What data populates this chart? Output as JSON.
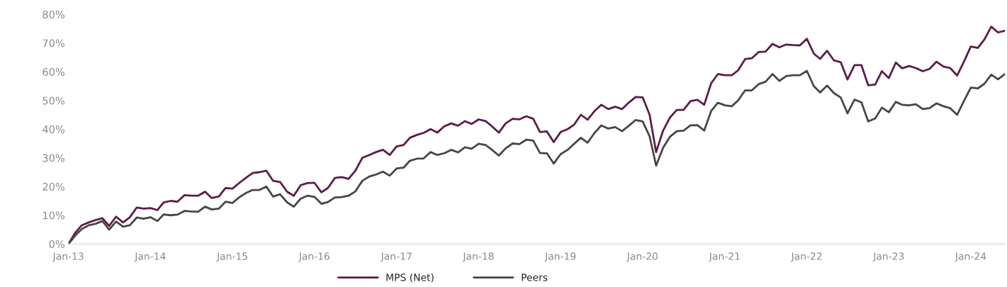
{
  "chart_data": {
    "type": "line",
    "x": [
      "2013-01",
      "2013-02",
      "2013-03",
      "2013-04",
      "2013-05",
      "2013-06",
      "2013-07",
      "2013-08",
      "2013-09",
      "2013-10",
      "2013-11",
      "2013-12",
      "2014-01",
      "2014-02",
      "2014-03",
      "2014-04",
      "2014-05",
      "2014-06",
      "2014-07",
      "2014-08",
      "2014-09",
      "2014-10",
      "2014-11",
      "2014-12",
      "2015-01",
      "2015-02",
      "2015-03",
      "2015-04",
      "2015-05",
      "2015-06",
      "2015-07",
      "2015-08",
      "2015-09",
      "2015-10",
      "2015-11",
      "2015-12",
      "2016-01",
      "2016-02",
      "2016-03",
      "2016-04",
      "2016-05",
      "2016-06",
      "2016-07",
      "2016-08",
      "2016-09",
      "2016-10",
      "2016-11",
      "2016-12",
      "2017-01",
      "2017-02",
      "2017-03",
      "2017-04",
      "2017-05",
      "2017-06",
      "2017-07",
      "2017-08",
      "2017-09",
      "2017-10",
      "2017-11",
      "2017-12",
      "2018-01",
      "2018-02",
      "2018-03",
      "2018-04",
      "2018-05",
      "2018-06",
      "2018-07",
      "2018-08",
      "2018-09",
      "2018-10",
      "2018-11",
      "2018-12",
      "2019-01",
      "2019-02",
      "2019-03",
      "2019-04",
      "2019-05",
      "2019-06",
      "2019-07",
      "2019-08",
      "2019-09",
      "2019-10",
      "2019-11",
      "2019-12",
      "2020-01",
      "2020-02",
      "2020-03",
      "2020-04",
      "2020-05",
      "2020-06",
      "2020-07",
      "2020-08",
      "2020-09",
      "2020-10",
      "2020-11",
      "2020-12",
      "2021-01",
      "2021-02",
      "2021-03",
      "2021-04",
      "2021-05",
      "2021-06",
      "2021-07",
      "2021-08",
      "2021-09",
      "2021-10",
      "2021-11",
      "2021-12",
      "2022-01",
      "2022-02",
      "2022-03",
      "2022-04",
      "2022-05",
      "2022-06",
      "2022-07",
      "2022-08",
      "2022-09",
      "2022-10",
      "2022-11",
      "2022-12",
      "2023-01",
      "2023-02",
      "2023-03",
      "2023-04",
      "2023-05",
      "2023-06",
      "2023-07",
      "2023-08",
      "2023-09",
      "2023-10",
      "2023-11",
      "2023-12",
      "2024-01",
      "2024-02",
      "2024-03",
      "2024-04",
      "2024-05",
      "2024-06"
    ],
    "series": [
      {
        "name": "MPS (Net)",
        "color": "#5f1a4c",
        "values": [
          0,
          4,
          6.5,
          7.5,
          8.3,
          9,
          6.3,
          9.5,
          7.5,
          9.3,
          12.7,
          12.3,
          12.5,
          11.8,
          14.5,
          15,
          14.7,
          17,
          16.8,
          16.8,
          18.2,
          16,
          16.5,
          19.5,
          19.3,
          21.3,
          23,
          24.7,
          25,
          25.5,
          22,
          21.6,
          18.2,
          16.8,
          20.5,
          21.2,
          21.3,
          18,
          19.5,
          23,
          23.3,
          22.7,
          25.5,
          30,
          31,
          32,
          32.8,
          31,
          34,
          34.5,
          37,
          38,
          38.7,
          40,
          38.8,
          41,
          42,
          41.2,
          42.8,
          41.8,
          43.4,
          42.8,
          41,
          38.8,
          42,
          43.6,
          43.4,
          44.5,
          43.6,
          39,
          39.2,
          35.5,
          39,
          40,
          41.5,
          45,
          43.3,
          46.3,
          48.5,
          47,
          47.8,
          47,
          49.3,
          51.2,
          51.1,
          45,
          32,
          39.5,
          44,
          46.7,
          46.7,
          49.8,
          50.2,
          48.5,
          56,
          59.2,
          58.8,
          58.8,
          60.5,
          64.4,
          64.7,
          66.9,
          67,
          69.7,
          68.5,
          69.5,
          69.3,
          69.2,
          71.5,
          66.3,
          64.5,
          67.3,
          64,
          63.3,
          57.3,
          62.3,
          62.3,
          55.3,
          55.5,
          60.2,
          57.8,
          63.2,
          61.2,
          62,
          61.3,
          60.2,
          61,
          63.5,
          61.8,
          61.3,
          58.7,
          63.5,
          68.8,
          68.3,
          71.2,
          75.7,
          73.7,
          74.3
        ]
      },
      {
        "name": "Peers",
        "color": "#464646",
        "values": [
          0,
          3,
          5.2,
          6.5,
          7,
          8,
          5,
          7.8,
          6,
          6.5,
          9.2,
          8.8,
          9.3,
          8,
          10.3,
          10,
          10.2,
          11.5,
          11.3,
          11.2,
          13,
          12,
          12.3,
          14.7,
          14.3,
          16.3,
          17.7,
          18.8,
          18.8,
          20,
          16.5,
          17.3,
          14.5,
          13,
          15.8,
          16.8,
          16.4,
          14,
          14.6,
          16.2,
          16.3,
          16.8,
          18.3,
          22,
          23.5,
          24.2,
          25.2,
          23.8,
          26.3,
          26.6,
          29,
          29.7,
          29.8,
          32,
          31,
          31.6,
          32.8,
          31.9,
          33.7,
          33.2,
          34.9,
          34.5,
          32.8,
          30.8,
          33.3,
          35,
          34.8,
          36.3,
          36,
          31.7,
          31.6,
          28,
          31.3,
          32.8,
          34.8,
          37,
          35.3,
          38.7,
          41.3,
          40.2,
          40.7,
          39.3,
          41.2,
          43.2,
          42.7,
          37.5,
          27.3,
          33.5,
          37.3,
          39.3,
          39.5,
          41.3,
          41.4,
          39.5,
          46.3,
          49.2,
          48.3,
          48,
          50,
          53.5,
          53.5,
          55.7,
          56.5,
          59.2,
          56.8,
          58.5,
          58.8,
          58.8,
          60.3,
          55,
          52.8,
          55.2,
          52.6,
          51,
          45.5,
          50.3,
          49.3,
          42.7,
          43.7,
          47.5,
          45.9,
          49.5,
          48.5,
          48.3,
          48.7,
          47,
          47.3,
          49,
          48,
          47.3,
          45,
          49.8,
          54.5,
          54.2,
          55.8,
          59,
          57.4,
          59.2
        ]
      }
    ],
    "xlim": [
      "2013-01",
      "2024-06"
    ],
    "xticks": [
      {
        "value": "2013-01",
        "label": "Jan-13"
      },
      {
        "value": "2014-01",
        "label": "Jan-14"
      },
      {
        "value": "2015-01",
        "label": "Jan-15"
      },
      {
        "value": "2016-01",
        "label": "Jan-16"
      },
      {
        "value": "2017-01",
        "label": "Jan-17"
      },
      {
        "value": "2018-01",
        "label": "Jan-18"
      },
      {
        "value": "2019-01",
        "label": "Jan-19"
      },
      {
        "value": "2020-01",
        "label": "Jan-20"
      },
      {
        "value": "2021-01",
        "label": "Jan-21"
      },
      {
        "value": "2022-01",
        "label": "Jan-22"
      },
      {
        "value": "2023-01",
        "label": "Jan-23"
      },
      {
        "value": "2024-01",
        "label": "Jan-24"
      }
    ],
    "ylim": [
      0,
      80
    ],
    "yticks": [
      {
        "value": 0,
        "label": "0%"
      },
      {
        "value": 10,
        "label": "10%"
      },
      {
        "value": 20,
        "label": "20%"
      },
      {
        "value": 30,
        "label": "30%"
      },
      {
        "value": 40,
        "label": "40%"
      },
      {
        "value": 50,
        "label": "50%"
      },
      {
        "value": 60,
        "label": "60%"
      },
      {
        "value": 70,
        "label": "70%"
      },
      {
        "value": 80,
        "label": "80%"
      }
    ],
    "grid": false,
    "legend": "bottom",
    "marker": "none",
    "line_style": "solid"
  }
}
